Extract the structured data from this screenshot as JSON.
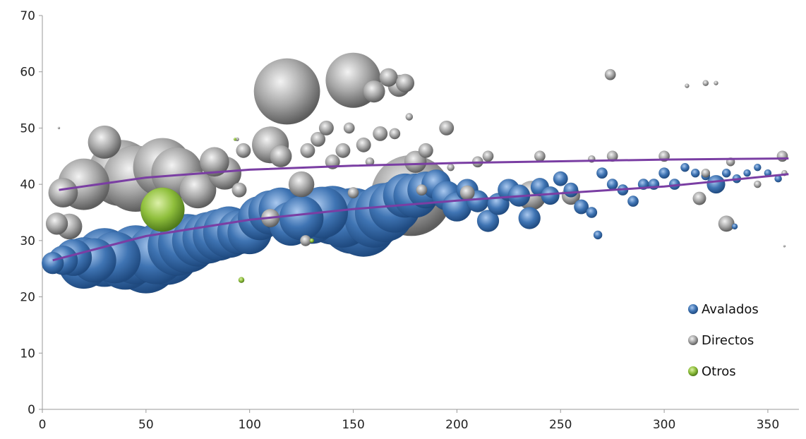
{
  "chart_data": {
    "type": "bubble",
    "xlim": [
      0,
      365
    ],
    "ylim": [
      0,
      70
    ],
    "xticks": [
      "0",
      "50",
      "100",
      "150",
      "200",
      "250",
      "300",
      "350"
    ],
    "yticks": [
      "0",
      "10",
      "20",
      "30",
      "40",
      "50",
      "60",
      "70"
    ],
    "grid": false,
    "legend_position": "bottom-right",
    "colors": {
      "Avalados": "#3f74b3",
      "Directos": "#9a9a9a",
      "Otros": "#8fbf3c",
      "trend": "#7a3ea3"
    },
    "series": [
      {
        "name": "Avalados",
        "points": [
          [
            5,
            26,
            3
          ],
          [
            10,
            26.5,
            4
          ],
          [
            15,
            27,
            5
          ],
          [
            20,
            26,
            7
          ],
          [
            25,
            26.5,
            6
          ],
          [
            30,
            27,
            8
          ],
          [
            35,
            27,
            7
          ],
          [
            40,
            26.5,
            8
          ],
          [
            45,
            27.5,
            8
          ],
          [
            50,
            26.5,
            9
          ],
          [
            55,
            27.5,
            8
          ],
          [
            60,
            28,
            9
          ],
          [
            65,
            29,
            8
          ],
          [
            70,
            29.5,
            8
          ],
          [
            75,
            30,
            7
          ],
          [
            80,
            30.5,
            7
          ],
          [
            85,
            31,
            7
          ],
          [
            90,
            31.5,
            7
          ],
          [
            95,
            31.5,
            6
          ],
          [
            100,
            31.5,
            6
          ],
          [
            105,
            34,
            6
          ],
          [
            110,
            35,
            6
          ],
          [
            115,
            35.5,
            6
          ],
          [
            120,
            33,
            6
          ],
          [
            125,
            34,
            6
          ],
          [
            130,
            34,
            7
          ],
          [
            135,
            35,
            7
          ],
          [
            140,
            34.5,
            8
          ],
          [
            145,
            34,
            8
          ],
          [
            150,
            33.5,
            9
          ],
          [
            155,
            33,
            9
          ],
          [
            160,
            34,
            8
          ],
          [
            165,
            35,
            8
          ],
          [
            170,
            36,
            7
          ],
          [
            175,
            38,
            6
          ],
          [
            180,
            38,
            6
          ],
          [
            185,
            39,
            5
          ],
          [
            190,
            40,
            4
          ],
          [
            195,
            38,
            4
          ],
          [
            200,
            36,
            4
          ],
          [
            205,
            39,
            3
          ],
          [
            210,
            37,
            3
          ],
          [
            215,
            33.5,
            3
          ],
          [
            220,
            36.5,
            3
          ],
          [
            225,
            39,
            3
          ],
          [
            230,
            38,
            3
          ],
          [
            235,
            34,
            3
          ],
          [
            240,
            39.5,
            2.5
          ],
          [
            245,
            38,
            2.5
          ],
          [
            250,
            41,
            2
          ],
          [
            255,
            39,
            2
          ],
          [
            260,
            36,
            2
          ],
          [
            265,
            35,
            1.5
          ],
          [
            268,
            31,
            1.2
          ],
          [
            270,
            42,
            1.5
          ],
          [
            275,
            40,
            1.5
          ],
          [
            280,
            39,
            1.5
          ],
          [
            285,
            37,
            1.5
          ],
          [
            290,
            40,
            1.5
          ],
          [
            295,
            40,
            1.5
          ],
          [
            300,
            42,
            1.5
          ],
          [
            305,
            40,
            1.5
          ],
          [
            310,
            43,
            1.2
          ],
          [
            315,
            42,
            1.2
          ],
          [
            320,
            41.5,
            1.2
          ],
          [
            325,
            40,
            2.5
          ],
          [
            330,
            42,
            1.2
          ],
          [
            335,
            41,
            1.2
          ],
          [
            340,
            42,
            1
          ],
          [
            345,
            43,
            1
          ],
          [
            350,
            42,
            1
          ],
          [
            355,
            41,
            1
          ],
          [
            334,
            32.5,
            0.8
          ]
        ]
      },
      {
        "name": "Directos",
        "points": [
          [
            7,
            33,
            3
          ],
          [
            13,
            32.5,
            3.5
          ],
          [
            10,
            38.5,
            4
          ],
          [
            20,
            40,
            7
          ],
          [
            30,
            47.5,
            4.5
          ],
          [
            38,
            42,
            9
          ],
          [
            45,
            41,
            9
          ],
          [
            58,
            43,
            8
          ],
          [
            65,
            42,
            7
          ],
          [
            75,
            39,
            5
          ],
          [
            83,
            44,
            4
          ],
          [
            88,
            42,
            4.5
          ],
          [
            95,
            39,
            2
          ],
          [
            97,
            46,
            2
          ],
          [
            110,
            47,
            5
          ],
          [
            110,
            34,
            2.5
          ],
          [
            115,
            45,
            3
          ],
          [
            125,
            40,
            3.5
          ],
          [
            118,
            56.5,
            9
          ],
          [
            127,
            30,
            1.5
          ],
          [
            128,
            46,
            2
          ],
          [
            133,
            48,
            2
          ],
          [
            137,
            50,
            2
          ],
          [
            140,
            44,
            2
          ],
          [
            145,
            46,
            2
          ],
          [
            148,
            50,
            1.5
          ],
          [
            150,
            58.5,
            7.5
          ],
          [
            150,
            38.5,
            1.5
          ],
          [
            155,
            47,
            2
          ],
          [
            158,
            44,
            1.2
          ],
          [
            160,
            56.5,
            3
          ],
          [
            163,
            49,
            2
          ],
          [
            167,
            59,
            2.5
          ],
          [
            170,
            49,
            1.5
          ],
          [
            172,
            57.5,
            3
          ],
          [
            175,
            58,
            2.5
          ],
          [
            177,
            52,
            1
          ],
          [
            180,
            44,
            3
          ],
          [
            185,
            46,
            2
          ],
          [
            178,
            38,
            11
          ],
          [
            183,
            39,
            1.5
          ],
          [
            195,
            50,
            2
          ],
          [
            197,
            43,
            1
          ],
          [
            205,
            38.5,
            2
          ],
          [
            210,
            44,
            1.5
          ],
          [
            215,
            45,
            1.5
          ],
          [
            240,
            45,
            1.5
          ],
          [
            236,
            38,
            4
          ],
          [
            255,
            38,
            2.5
          ],
          [
            265,
            44.5,
            1
          ],
          [
            274,
            59.5,
            1.5
          ],
          [
            275,
            45,
            1.5
          ],
          [
            300,
            45,
            1.5
          ],
          [
            311,
            57.5,
            0.6
          ],
          [
            317,
            37.5,
            1.8
          ],
          [
            320,
            58,
            0.8
          ],
          [
            325,
            58,
            0.6
          ],
          [
            330,
            33,
            2.2
          ],
          [
            332,
            44,
            1.2
          ],
          [
            357,
            45,
            1.5
          ],
          [
            320,
            42,
            1.2
          ],
          [
            345,
            40,
            1
          ],
          [
            358,
            42,
            0.8
          ],
          [
            8,
            50,
            0.3
          ],
          [
            358,
            29,
            0.3
          ],
          [
            94,
            48,
            0.5
          ]
        ]
      },
      {
        "name": "Otros",
        "points": [
          [
            58,
            35.5,
            6
          ],
          [
            96,
            23,
            0.8
          ],
          [
            93,
            48,
            0.4
          ],
          [
            130,
            30,
            0.6
          ]
        ]
      }
    ],
    "trendlines": [
      {
        "series": "Directos",
        "x": [
          8,
          50,
          100,
          150,
          200,
          250,
          300,
          360
        ],
        "y": [
          39,
          41.2,
          42.6,
          43.3,
          43.8,
          44.1,
          44.4,
          44.6
        ]
      },
      {
        "series": "Avalados",
        "x": [
          5,
          50,
          100,
          150,
          200,
          250,
          300,
          360
        ],
        "y": [
          26.5,
          30.8,
          33.7,
          35.6,
          37.1,
          38.4,
          39.6,
          41.8
        ]
      }
    ]
  }
}
